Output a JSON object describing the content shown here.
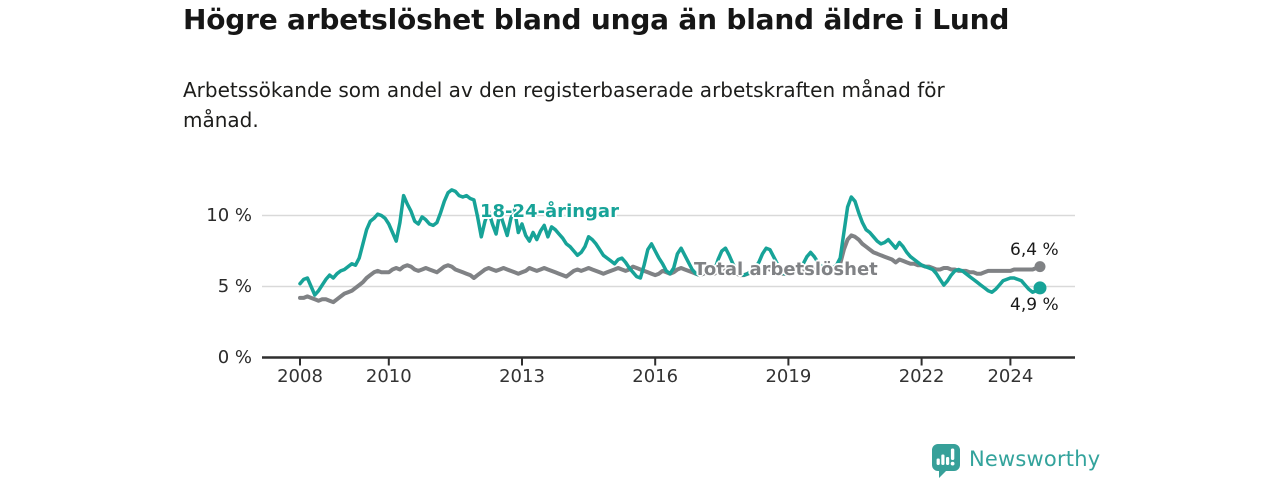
{
  "header": {
    "title": "Högre arbetslöshet bland unga än bland äldre i Lund",
    "subtitle_lines": [
      "Arbetssökande som andel av den registerbaserade arbetskraften månad för",
      "månad."
    ]
  },
  "chart_data": {
    "type": "line",
    "unit": "%",
    "frequency": "monthly",
    "x_start": "2008-01",
    "x_end": "2024-09",
    "ylim": [
      0,
      12.5
    ],
    "grid": "horizontal",
    "legend_position": "inline-labels",
    "y_ticks": [
      {
        "value": 0,
        "label": "0 %"
      },
      {
        "value": 5,
        "label": "5 %"
      },
      {
        "value": 10,
        "label": "10 %"
      }
    ],
    "x_ticks": [
      {
        "month_index": 0,
        "label": "2008"
      },
      {
        "month_index": 24,
        "label": "2010"
      },
      {
        "month_index": 60,
        "label": "2013"
      },
      {
        "month_index": 96,
        "label": "2016"
      },
      {
        "month_index": 132,
        "label": "2019"
      },
      {
        "month_index": 168,
        "label": "2022"
      },
      {
        "month_index": 192,
        "label": "2024"
      }
    ],
    "series": [
      {
        "id": "youth",
        "name": "18-24-åringar",
        "color": "#17A398",
        "end_label": "4,9 %",
        "end_value": 4.9,
        "values": [
          5.2,
          5.5,
          5.6,
          5.0,
          4.4,
          4.7,
          5.1,
          5.5,
          5.8,
          5.6,
          5.9,
          6.1,
          6.2,
          6.4,
          6.6,
          6.5,
          7.0,
          8.0,
          9.0,
          9.6,
          9.8,
          10.1,
          10.0,
          9.8,
          9.4,
          8.8,
          8.2,
          9.5,
          11.4,
          10.8,
          10.3,
          9.6,
          9.4,
          9.9,
          9.7,
          9.4,
          9.3,
          9.5,
          10.2,
          11.0,
          11.6,
          11.8,
          11.7,
          11.4,
          11.3,
          11.4,
          11.2,
          11.1,
          9.9,
          8.5,
          9.6,
          10.3,
          9.4,
          8.7,
          10.2,
          9.4,
          8.6,
          9.8,
          10.4,
          8.8,
          9.4,
          8.6,
          8.2,
          8.8,
          8.3,
          8.9,
          9.3,
          8.5,
          9.2,
          9.0,
          8.7,
          8.4,
          8.0,
          7.8,
          7.5,
          7.2,
          7.4,
          7.8,
          8.5,
          8.3,
          8.0,
          7.6,
          7.2,
          7.0,
          6.8,
          6.6,
          6.9,
          7.0,
          6.7,
          6.3,
          6.0,
          5.7,
          5.6,
          6.5,
          7.6,
          8.0,
          7.5,
          7.0,
          6.6,
          6.1,
          5.9,
          6.3,
          7.3,
          7.7,
          7.2,
          6.7,
          6.2,
          5.9,
          5.8,
          6.0,
          6.2,
          5.9,
          6.1,
          6.9,
          7.5,
          7.7,
          7.2,
          6.6,
          6.1,
          5.9,
          5.8,
          5.9,
          6.1,
          6.3,
          6.7,
          7.3,
          7.7,
          7.6,
          7.1,
          6.6,
          6.1,
          5.9,
          5.8,
          5.9,
          6.1,
          6.3,
          6.6,
          7.1,
          7.4,
          7.1,
          6.7,
          6.4,
          6.2,
          6.2,
          6.3,
          6.5,
          7.0,
          8.8,
          10.6,
          11.3,
          11.0,
          10.2,
          9.5,
          9.0,
          8.8,
          8.5,
          8.2,
          8.0,
          8.1,
          8.3,
          8.0,
          7.7,
          8.1,
          7.8,
          7.4,
          7.1,
          6.9,
          6.7,
          6.5,
          6.4,
          6.3,
          6.2,
          5.9,
          5.5,
          5.1,
          5.4,
          5.8,
          6.1,
          6.2,
          6.1,
          5.9,
          5.7,
          5.5,
          5.3,
          5.1,
          4.9,
          4.7,
          4.6,
          4.8,
          5.1,
          5.4,
          5.5,
          5.6,
          5.6,
          5.5,
          5.4,
          5.1,
          4.8,
          4.6,
          4.7,
          4.9
        ]
      },
      {
        "id": "total",
        "name": "Total arbetslöshet",
        "color": "#808285",
        "end_label": "6,4 %",
        "end_value": 6.4,
        "values": [
          4.2,
          4.2,
          4.3,
          4.2,
          4.1,
          4.0,
          4.1,
          4.1,
          4.0,
          3.9,
          4.1,
          4.3,
          4.5,
          4.6,
          4.7,
          4.9,
          5.1,
          5.3,
          5.6,
          5.8,
          6.0,
          6.1,
          6.0,
          6.0,
          6.0,
          6.2,
          6.3,
          6.2,
          6.4,
          6.5,
          6.4,
          6.2,
          6.1,
          6.2,
          6.3,
          6.2,
          6.1,
          6.0,
          6.2,
          6.4,
          6.5,
          6.4,
          6.2,
          6.1,
          6.0,
          5.9,
          5.8,
          5.6,
          5.8,
          6.0,
          6.2,
          6.3,
          6.2,
          6.1,
          6.2,
          6.3,
          6.2,
          6.1,
          6.0,
          5.9,
          6.0,
          6.1,
          6.3,
          6.2,
          6.1,
          6.2,
          6.3,
          6.2,
          6.1,
          6.0,
          5.9,
          5.8,
          5.7,
          5.9,
          6.1,
          6.2,
          6.1,
          6.2,
          6.3,
          6.2,
          6.1,
          6.0,
          5.9,
          6.0,
          6.1,
          6.2,
          6.3,
          6.2,
          6.1,
          6.2,
          6.4,
          6.3,
          6.2,
          6.1,
          6.0,
          5.9,
          5.8,
          5.9,
          6.1,
          6.0,
          5.9,
          6.0,
          6.2,
          6.3,
          6.2,
          6.1,
          6.0,
          5.9,
          5.8,
          5.9,
          6.0,
          6.0,
          5.9,
          6.1,
          6.2,
          6.1,
          6.0,
          5.9,
          5.9,
          5.8,
          5.8,
          5.9,
          6.0,
          6.0,
          6.1,
          6.2,
          6.3,
          6.2,
          6.1,
          6.0,
          5.9,
          5.9,
          5.9,
          6.0,
          6.1,
          6.1,
          6.2,
          6.3,
          6.4,
          6.3,
          6.2,
          6.1,
          6.1,
          6.1,
          6.2,
          6.3,
          6.6,
          7.6,
          8.3,
          8.6,
          8.5,
          8.3,
          8.0,
          7.8,
          7.6,
          7.4,
          7.3,
          7.2,
          7.1,
          7.0,
          6.9,
          6.7,
          6.9,
          6.8,
          6.7,
          6.6,
          6.6,
          6.5,
          6.5,
          6.4,
          6.4,
          6.3,
          6.2,
          6.2,
          6.3,
          6.3,
          6.2,
          6.2,
          6.1,
          6.1,
          6.1,
          6.0,
          6.0,
          5.9,
          5.9,
          6.0,
          6.1,
          6.1,
          6.1,
          6.1,
          6.1,
          6.1,
          6.1,
          6.2,
          6.2,
          6.2,
          6.2,
          6.2,
          6.2,
          6.3,
          6.4
        ]
      }
    ]
  },
  "colors": {
    "accent_teal": "#17A398",
    "line_gray": "#808285",
    "gridline": "#D9D9D9",
    "axis": "#2F2F2F",
    "title_text": "#161616",
    "body_text": "#1D1D1B",
    "logo_teal": "#33A39C"
  },
  "footer": {
    "brand": "Newsworthy"
  }
}
